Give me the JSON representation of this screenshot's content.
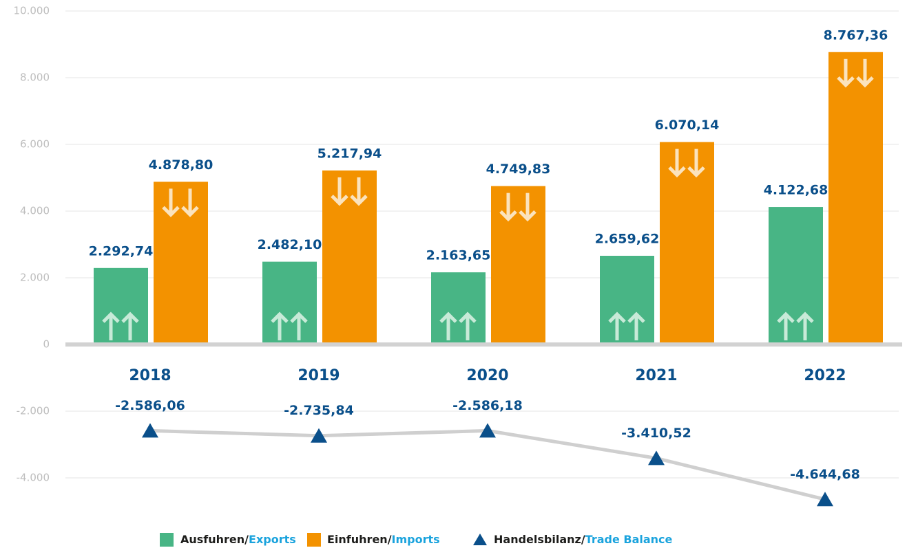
{
  "chart_data": {
    "type": "bar_line",
    "categories": [
      "2018",
      "2019",
      "2020",
      "2021",
      "2022"
    ],
    "series": [
      {
        "name": "Ausfuhren/Exports",
        "type": "bar",
        "color": "#48b585",
        "values": [
          2292.74,
          2482.1,
          2163.65,
          2659.62,
          4122.68
        ],
        "value_labels": [
          "2.292,74",
          "2.482,10",
          "2.163,65",
          "2.659,62",
          "4.122,68"
        ]
      },
      {
        "name": "Einfuhren/Imports",
        "type": "bar",
        "color": "#f39200",
        "values": [
          4878.8,
          5217.94,
          4749.83,
          6070.14,
          8767.36
        ],
        "value_labels": [
          "4.878,80",
          "5.217,94",
          "4.749,83",
          "6.070,14",
          "8.767,36"
        ]
      },
      {
        "name": "Handelsbilanz/Trade Balance",
        "type": "line",
        "color": "#0a4f8a",
        "line_color": "#cfcfcf",
        "values": [
          -2586.06,
          -2735.84,
          -2586.18,
          -3410.52,
          -4644.68
        ],
        "value_labels": [
          "-2.586,06",
          "-2.735,84",
          "-2.586,18",
          "-3.410,52",
          "-4.644,68"
        ]
      }
    ],
    "legend_second_color": "#1aa3dd",
    "ylim": [
      -5000,
      10000
    ],
    "yticks": [
      {
        "value": -4000,
        "label": "-4.000"
      },
      {
        "value": -2000,
        "label": "-2.000"
      },
      0,
      {
        "value": 2000,
        "label": "2.000"
      },
      {
        "value": 4000,
        "label": "4.000"
      },
      {
        "value": 6000,
        "label": "6.000"
      },
      {
        "value": 8000,
        "label": "8.000"
      },
      {
        "value": 10000,
        "label": "10.000"
      }
    ],
    "grid": true,
    "legend": "bottom"
  }
}
